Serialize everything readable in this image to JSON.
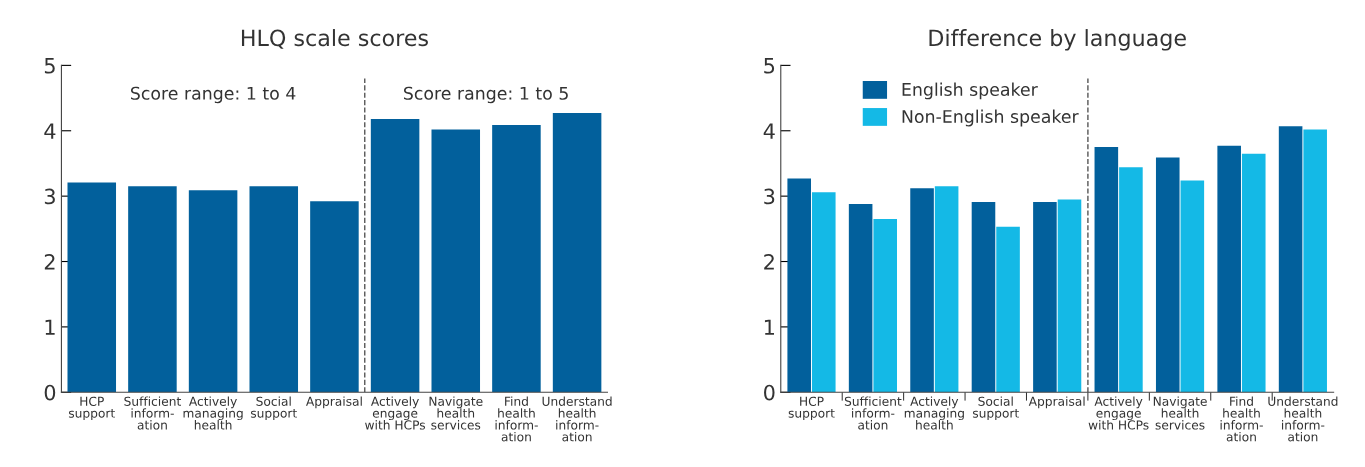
{
  "chart_data": [
    {
      "type": "bar",
      "title": "HLQ scale scores",
      "categories": [
        "HCP\nsupport",
        "Sufficient\ninform-\nation",
        "Actively\nmanaging\nhealth",
        "Social\nsupport",
        "Appraisal",
        "Actively\nengage\nwith HCPs",
        "Navigate\nhealth\nservices",
        "Find\nhealth\ninform-\nation",
        "Understand\nhealth\ninform-\nation"
      ],
      "values": [
        3.21,
        3.15,
        3.09,
        3.15,
        2.92,
        4.18,
        4.02,
        4.09,
        4.27
      ],
      "color": "#02609c",
      "ylim": [
        0,
        5
      ],
      "yticks": [
        0,
        1,
        2,
        3,
        4,
        5
      ],
      "grid": false,
      "legend": false,
      "annotations": [
        "Score range: 1 to 4",
        "Score range: 1 to 5"
      ]
    },
    {
      "type": "bar",
      "title": "Difference by language",
      "categories": [
        "HCP\nsupport",
        "Sufficient\ninform-\nation",
        "Actively\nmanaging\nhealth",
        "Social\nsupport",
        "Appraisal",
        "Actively\nengage\nwith HCPs",
        "Navigate\nhealth\nservices",
        "Find\nhealth\ninform-\nation",
        "Understand\nhealth\ninform-\nation"
      ],
      "series": [
        {
          "name": "English speaker",
          "color": "#02609c",
          "values": [
            3.27,
            2.88,
            3.12,
            2.91,
            2.91,
            3.75,
            3.59,
            3.77,
            4.07
          ]
        },
        {
          "name": "Non-English speaker",
          "color": "#14b9e6",
          "values": [
            3.06,
            2.65,
            3.15,
            2.53,
            2.95,
            3.44,
            3.24,
            3.65,
            4.02
          ]
        }
      ],
      "ylim": [
        0,
        5
      ],
      "yticks": [
        0,
        1,
        2,
        3,
        4,
        5
      ],
      "grid": false,
      "legend": "top left"
    }
  ]
}
